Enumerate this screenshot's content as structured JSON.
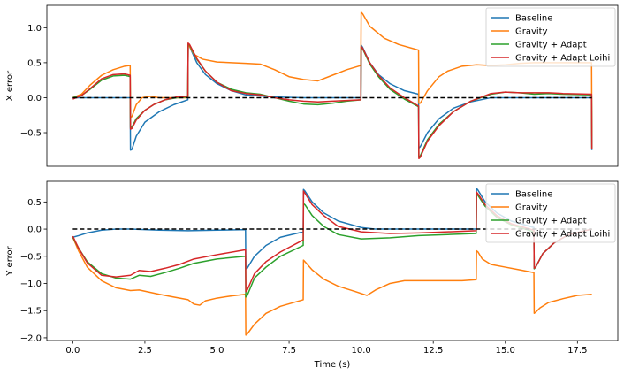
{
  "chart_data": [
    {
      "type": "line",
      "title": "",
      "xlabel": "",
      "ylabel": "X error",
      "xlim": [
        -0.9,
        18.9
      ],
      "ylim": [
        -0.98,
        1.32
      ],
      "xticks_visible": false,
      "yticks": [
        -0.5,
        0.0,
        0.5,
        1.0
      ],
      "ytick_labels": [
        "−0.5",
        "0.0",
        "0.5",
        "1.0"
      ],
      "legend": {
        "placement": "top-right",
        "entries": [
          "Baseline",
          "Gravity",
          "Gravity + Adapt",
          "Gravity + Adapt Loihi"
        ]
      },
      "reference_line": {
        "y": 0.0,
        "style": "dashed",
        "color": "#000000",
        "x_range": [
          0,
          18
        ]
      },
      "series": [
        {
          "name": "Baseline",
          "color": "#1f77b4",
          "x": [
            0,
            0.5,
            1,
            1.5,
            1.99,
            2.0,
            2.05,
            2.2,
            2.5,
            3,
            3.5,
            3.99,
            4.0,
            4.05,
            4.3,
            4.6,
            5,
            5.5,
            6,
            7,
            8,
            9,
            9.99,
            10.0,
            10.05,
            10.3,
            10.6,
            11,
            11.5,
            11.99,
            12.0,
            12.05,
            12.3,
            12.7,
            13.2,
            13.8,
            14.5,
            15,
            16,
            17,
            17.99,
            18.0
          ],
          "y": [
            0.0,
            0.0,
            0.0,
            0.0,
            0.0,
            -0.75,
            -0.74,
            -0.55,
            -0.35,
            -0.2,
            -0.1,
            -0.03,
            0.75,
            0.73,
            0.5,
            0.33,
            0.2,
            0.1,
            0.04,
            0.01,
            0.0,
            0.0,
            0.0,
            0.75,
            0.72,
            0.5,
            0.33,
            0.2,
            0.1,
            0.05,
            -0.72,
            -0.7,
            -0.5,
            -0.3,
            -0.15,
            -0.06,
            0.0,
            0.0,
            0.0,
            0.0,
            0.0,
            -0.75
          ]
        },
        {
          "name": "Gravity",
          "color": "#ff7f0e",
          "x": [
            0,
            0.3,
            0.6,
            1.0,
            1.4,
            1.8,
            1.99,
            2.0,
            2.05,
            2.2,
            2.4,
            2.7,
            3.0,
            3.5,
            3.99,
            4.0,
            4.05,
            4.2,
            4.5,
            5,
            5.5,
            6,
            6.5,
            7,
            7.5,
            8,
            8.5,
            9,
            9.5,
            9.99,
            10.0,
            10.05,
            10.3,
            10.8,
            11.3,
            11.99,
            12.0,
            12.05,
            12.3,
            12.7,
            13,
            13.5,
            14,
            14.5,
            15,
            15.5,
            16,
            16.5,
            17,
            17.5,
            17.99,
            18.0
          ],
          "y": [
            0.0,
            0.05,
            0.18,
            0.32,
            0.4,
            0.45,
            0.46,
            -0.28,
            -0.27,
            -0.1,
            0.0,
            0.02,
            0.0,
            0.0,
            0.0,
            0.75,
            0.73,
            0.62,
            0.55,
            0.51,
            0.5,
            0.49,
            0.48,
            0.4,
            0.3,
            0.26,
            0.24,
            0.32,
            0.4,
            0.46,
            1.22,
            1.2,
            1.02,
            0.85,
            0.76,
            0.68,
            -0.08,
            -0.08,
            0.1,
            0.3,
            0.38,
            0.45,
            0.47,
            0.46,
            0.47,
            0.49,
            0.5,
            0.5,
            0.5,
            0.5,
            0.5,
            -0.55
          ]
        },
        {
          "name": "Gravity + Adapt",
          "color": "#2ca02c",
          "x": [
            0,
            0.3,
            0.6,
            1.0,
            1.4,
            1.8,
            1.99,
            2.0,
            2.05,
            2.2,
            2.5,
            2.8,
            3.2,
            3.6,
            3.99,
            4.0,
            4.05,
            4.3,
            4.6,
            5,
            5.5,
            6,
            6.5,
            7,
            7.5,
            8,
            8.5,
            9,
            9.5,
            9.99,
            10.0,
            10.05,
            10.3,
            10.6,
            11,
            11.5,
            11.99,
            12.0,
            12.05,
            12.3,
            12.7,
            13.2,
            13.8,
            14.5,
            15,
            15.5,
            16,
            16.5,
            17,
            17.99,
            18.0
          ],
          "y": [
            0.0,
            0.03,
            0.12,
            0.25,
            0.31,
            0.32,
            0.3,
            -0.43,
            -0.42,
            -0.3,
            -0.18,
            -0.1,
            -0.03,
            0.0,
            0.01,
            0.77,
            0.75,
            0.55,
            0.38,
            0.22,
            0.12,
            0.07,
            0.05,
            0.0,
            -0.05,
            -0.09,
            -0.1,
            -0.08,
            -0.05,
            -0.03,
            0.72,
            0.7,
            0.48,
            0.3,
            0.12,
            -0.02,
            -0.13,
            -0.85,
            -0.83,
            -0.6,
            -0.38,
            -0.2,
            -0.05,
            0.05,
            0.08,
            0.07,
            0.05,
            0.06,
            0.05,
            0.04,
            -0.72
          ]
        },
        {
          "name": "Gravity + Adapt Loihi",
          "color": "#d62728",
          "x": [
            0,
            0.3,
            0.6,
            1.0,
            1.4,
            1.8,
            1.99,
            2.0,
            2.05,
            2.2,
            2.5,
            2.8,
            3.2,
            3.6,
            3.99,
            4.0,
            4.05,
            4.3,
            4.6,
            5,
            5.5,
            6,
            6.5,
            7,
            7.5,
            8,
            8.5,
            9,
            9.5,
            9.99,
            10.0,
            10.05,
            10.3,
            10.6,
            11,
            11.5,
            11.99,
            12.0,
            12.05,
            12.3,
            12.7,
            13.2,
            13.8,
            14.5,
            15,
            15.5,
            16,
            16.5,
            17,
            17.99,
            18.0
          ],
          "y": [
            -0.02,
            0.03,
            0.13,
            0.27,
            0.33,
            0.34,
            0.32,
            -0.45,
            -0.44,
            -0.32,
            -0.18,
            -0.1,
            -0.03,
            0.01,
            0.02,
            0.78,
            0.76,
            0.56,
            0.38,
            0.22,
            0.1,
            0.06,
            0.04,
            0.0,
            -0.03,
            -0.05,
            -0.06,
            -0.05,
            -0.04,
            -0.03,
            0.73,
            0.71,
            0.5,
            0.32,
            0.14,
            0.0,
            -0.12,
            -0.87,
            -0.85,
            -0.62,
            -0.4,
            -0.2,
            -0.05,
            0.06,
            0.08,
            0.07,
            0.07,
            0.07,
            0.06,
            0.05,
            -0.73
          ]
        }
      ]
    },
    {
      "type": "line",
      "title": "",
      "xlabel": "Time (s)",
      "ylabel": "Y error",
      "xlim": [
        -0.9,
        18.9
      ],
      "ylim": [
        -2.05,
        0.88
      ],
      "xticks": [
        0.0,
        2.5,
        5.0,
        7.5,
        10.0,
        12.5,
        15.0,
        17.5
      ],
      "xtick_labels": [
        "0.0",
        "2.5",
        "5.0",
        "7.5",
        "10.0",
        "12.5",
        "15.0",
        "17.5"
      ],
      "yticks": [
        -2.0,
        -1.5,
        -1.0,
        -0.5,
        0.0,
        0.5
      ],
      "ytick_labels": [
        "−2.0",
        "−1.5",
        "−1.0",
        "−0.5",
        "0.0",
        "0.5"
      ],
      "legend": {
        "placement": "top-right",
        "entries": [
          "Baseline",
          "Gravity",
          "Gravity + Adapt",
          "Gravity + Adapt Loihi"
        ]
      },
      "reference_line": {
        "y": 0.0,
        "style": "dashed",
        "color": "#000000",
        "x_range": [
          0,
          18
        ]
      },
      "series": [
        {
          "name": "Baseline",
          "color": "#1f77b4",
          "x": [
            0,
            0.2,
            0.5,
            1.0,
            1.5,
            2.0,
            3,
            4,
            5,
            5.99,
            6.0,
            6.05,
            6.3,
            6.7,
            7.2,
            7.99,
            8.0,
            8.05,
            8.3,
            8.7,
            9.2,
            10,
            10.5,
            11,
            12,
            13,
            13.99,
            14.0,
            14.05,
            14.3,
            14.7,
            15.2,
            15.99,
            16.0,
            16.05,
            16.3,
            16.7,
            17.2,
            18.0
          ],
          "y": [
            -0.15,
            -0.12,
            -0.07,
            -0.02,
            0.0,
            0.0,
            -0.02,
            -0.03,
            -0.02,
            -0.01,
            -0.73,
            -0.72,
            -0.5,
            -0.3,
            -0.15,
            -0.05,
            0.73,
            0.7,
            0.5,
            0.3,
            0.15,
            0.03,
            0.0,
            0.0,
            0.0,
            0.0,
            0.0,
            0.75,
            0.72,
            0.5,
            0.3,
            0.15,
            0.03,
            -0.73,
            -0.7,
            -0.45,
            -0.25,
            -0.1,
            0.0
          ]
        },
        {
          "name": "Gravity",
          "color": "#ff7f0e",
          "x": [
            0,
            0.2,
            0.5,
            1.0,
            1.5,
            2.0,
            2.3,
            3,
            3.5,
            4,
            4.2,
            4.4,
            4.6,
            5,
            5.5,
            5.99,
            6.0,
            6.05,
            6.3,
            6.7,
            7.2,
            7.99,
            8.0,
            8.05,
            8.3,
            8.7,
            9.2,
            9.8,
            10.2,
            10.5,
            11,
            11.5,
            12,
            12.5,
            13,
            13.5,
            13.99,
            14.0,
            14.05,
            14.2,
            14.5,
            15,
            15.5,
            15.99,
            16.0,
            16.05,
            16.2,
            16.5,
            17,
            17.5,
            18.0
          ],
          "y": [
            -0.15,
            -0.4,
            -0.7,
            -0.95,
            -1.08,
            -1.13,
            -1.12,
            -1.2,
            -1.25,
            -1.3,
            -1.38,
            -1.4,
            -1.32,
            -1.27,
            -1.23,
            -1.2,
            -1.95,
            -1.93,
            -1.75,
            -1.55,
            -1.42,
            -1.3,
            -0.57,
            -0.6,
            -0.75,
            -0.92,
            -1.05,
            -1.15,
            -1.22,
            -1.12,
            -1.0,
            -0.95,
            -0.95,
            -0.95,
            -0.95,
            -0.95,
            -0.93,
            -0.4,
            -0.42,
            -0.55,
            -0.65,
            -0.7,
            -0.75,
            -0.8,
            -1.55,
            -1.53,
            -1.45,
            -1.35,
            -1.28,
            -1.22,
            -1.2
          ]
        },
        {
          "name": "Gravity + Adapt",
          "color": "#2ca02c",
          "x": [
            0,
            0.2,
            0.5,
            1.0,
            1.5,
            2.0,
            2.3,
            2.7,
            3.2,
            3.7,
            4.2,
            5,
            5.99,
            6.0,
            6.05,
            6.3,
            6.7,
            7.2,
            7.99,
            8.0,
            8.05,
            8.3,
            8.7,
            9.2,
            10,
            11,
            12,
            13,
            13.99,
            14.0,
            14.05,
            14.3,
            14.7,
            15.2,
            15.99,
            16.0,
            16.05,
            16.3,
            16.7,
            17.2,
            18.0
          ],
          "y": [
            -0.15,
            -0.35,
            -0.6,
            -0.82,
            -0.9,
            -0.92,
            -0.85,
            -0.87,
            -0.8,
            -0.72,
            -0.63,
            -0.55,
            -0.5,
            -1.25,
            -1.22,
            -0.9,
            -0.7,
            -0.5,
            -0.3,
            0.47,
            0.45,
            0.25,
            0.05,
            -0.1,
            -0.18,
            -0.16,
            -0.12,
            -0.1,
            -0.08,
            0.65,
            0.62,
            0.42,
            0.22,
            0.08,
            -0.05,
            -0.73,
            -0.7,
            -0.45,
            -0.25,
            -0.1,
            0.0
          ]
        },
        {
          "name": "Gravity + Adapt Loihi",
          "color": "#d62728",
          "x": [
            0,
            0.2,
            0.5,
            1.0,
            1.5,
            2.0,
            2.3,
            2.7,
            3.2,
            3.7,
            4.2,
            5,
            5.99,
            6.0,
            6.05,
            6.3,
            6.7,
            7.2,
            7.99,
            8.0,
            8.05,
            8.3,
            8.7,
            9.2,
            10,
            11,
            12,
            13,
            13.99,
            14.0,
            14.05,
            14.3,
            14.7,
            15.2,
            15.99,
            16.0,
            16.05,
            16.3,
            16.7,
            17.2,
            18.0
          ],
          "y": [
            -0.13,
            -0.35,
            -0.62,
            -0.85,
            -0.88,
            -0.85,
            -0.76,
            -0.78,
            -0.72,
            -0.65,
            -0.55,
            -0.47,
            -0.38,
            -1.15,
            -1.12,
            -0.82,
            -0.6,
            -0.42,
            -0.2,
            0.7,
            0.66,
            0.45,
            0.25,
            0.05,
            -0.05,
            -0.08,
            -0.07,
            -0.05,
            -0.03,
            0.68,
            0.65,
            0.45,
            0.25,
            0.1,
            -0.02,
            -0.72,
            -0.7,
            -0.45,
            -0.25,
            -0.1,
            0.0
          ]
        }
      ]
    }
  ]
}
